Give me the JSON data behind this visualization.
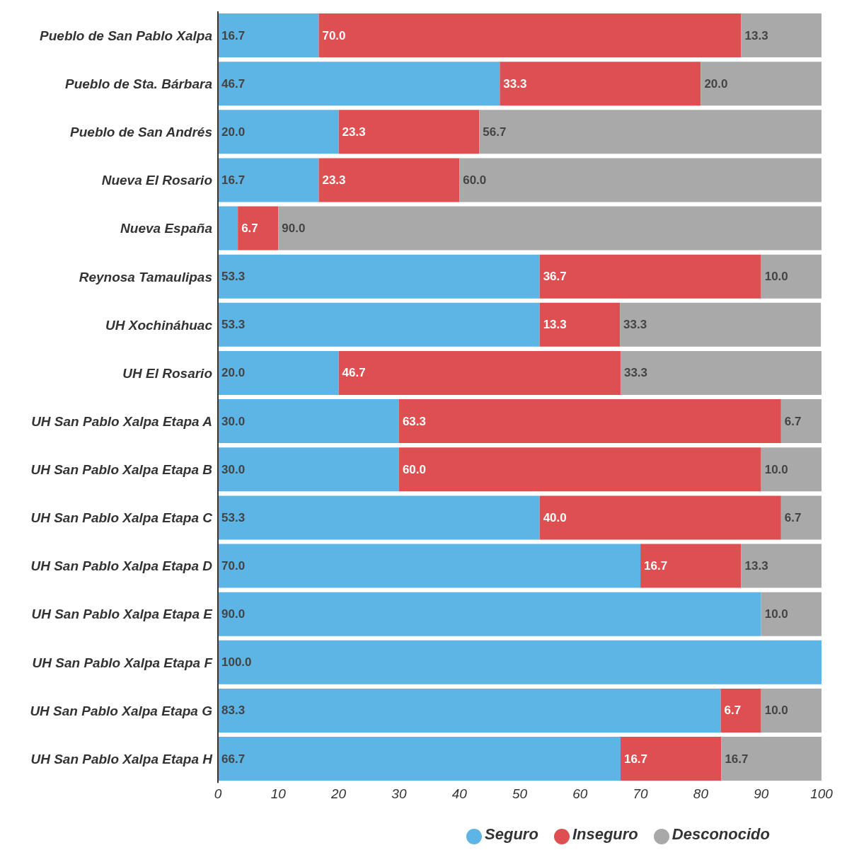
{
  "chart_data": {
    "type": "bar",
    "orientation": "horizontal",
    "stacked": true,
    "categories": [
      "Pueblo de San Pablo Xalpa",
      "Pueblo de Sta. Bárbara",
      "Pueblo de San Andrés",
      "Nueva El Rosario",
      "Nueva España",
      "Reynosa Tamaulipas",
      "UH Xochináhuac",
      "UH El Rosario",
      "UH San Pablo Xalpa Etapa A",
      "UH San Pablo Xalpa Etapa B",
      "UH San Pablo Xalpa Etapa C",
      "UH San Pablo Xalpa Etapa D",
      "UH San Pablo Xalpa Etapa E",
      "UH San Pablo Xalpa Etapa F",
      "UH San Pablo Xalpa Etapa G",
      "UH San Pablo Xalpa Etapa H"
    ],
    "series": [
      {
        "name": "Seguro",
        "color": "#5db5e5",
        "values": [
          16.7,
          46.7,
          20.0,
          16.7,
          3.3,
          53.3,
          53.3,
          20.0,
          30.0,
          30.0,
          53.3,
          70.0,
          90.0,
          100.0,
          83.3,
          66.7
        ],
        "value_labels": [
          "16.7",
          "46.7",
          "20.0",
          "16.7",
          null,
          "53.3",
          "53.3",
          "20.0",
          "30.0",
          "30.0",
          "53.3",
          "70.0",
          "90.0",
          "100.0",
          "83.3",
          "66.7"
        ]
      },
      {
        "name": "Inseguro",
        "color": "#dd4f51",
        "values": [
          70.0,
          33.3,
          23.3,
          23.3,
          6.7,
          36.7,
          13.3,
          46.7,
          63.3,
          60.0,
          40.0,
          16.7,
          0,
          0,
          6.7,
          16.7
        ],
        "value_labels": [
          "70.0",
          "33.3",
          "23.3",
          "23.3",
          "6.7",
          "36.7",
          "13.3",
          "46.7",
          "63.3",
          "60.0",
          "40.0",
          "16.7",
          null,
          null,
          "6.7",
          "16.7"
        ]
      },
      {
        "name": "Desconocido",
        "color": "#a9a9a9",
        "values": [
          13.3,
          20.0,
          56.7,
          60.0,
          90.0,
          10.0,
          33.3,
          33.3,
          6.7,
          10.0,
          6.7,
          13.3,
          10.0,
          0,
          10.0,
          16.7
        ],
        "value_labels": [
          "13.3",
          "20.0",
          "56.7",
          "60.0",
          "90.0",
          "10.0",
          "33.3",
          "33.3",
          "6.7",
          "10.0",
          "6.7",
          "13.3",
          "10.0",
          null,
          "10.0",
          "16.7"
        ]
      }
    ],
    "xlim": [
      0,
      100
    ],
    "xticks": [
      0,
      10,
      20,
      30,
      40,
      50,
      60,
      70,
      80,
      90,
      100
    ],
    "legend": "bottom"
  }
}
